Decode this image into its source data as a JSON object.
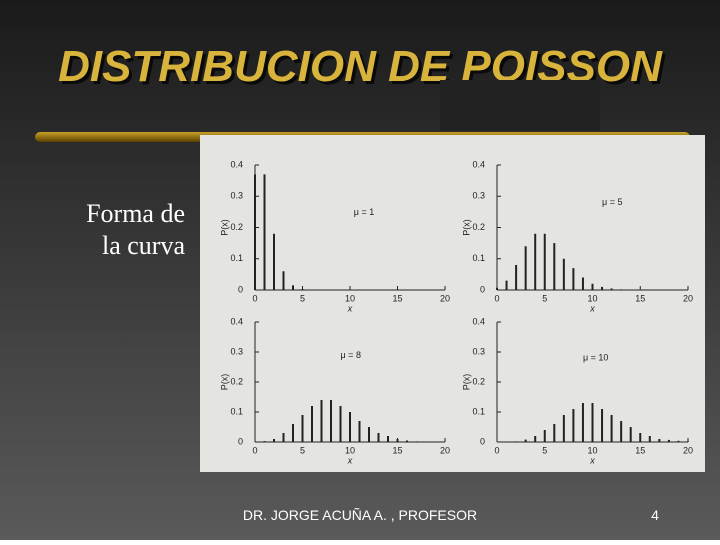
{
  "title": "DISTRIBUCION DE POISSON",
  "side_text": [
    "Forma de",
    "la curva"
  ],
  "footer": "DR. JORGE ACUÑA A. , PROFESOR",
  "page_number": "4",
  "chart_data": [
    {
      "type": "bar",
      "annotation": "μ = 1",
      "y_label": "P(x)",
      "x_label": "x",
      "x": [
        0,
        1,
        2,
        3,
        4,
        5
      ],
      "values": [
        0.37,
        0.37,
        0.18,
        0.06,
        0.015,
        0.003
      ],
      "xlim": [
        0,
        20
      ],
      "ylim": [
        0,
        0.4
      ],
      "xticks": [
        0,
        5,
        10,
        15,
        20
      ],
      "yticks": [
        0,
        0.1,
        0.2,
        0.3,
        0.4
      ],
      "color": "#222222"
    },
    {
      "type": "bar",
      "annotation": "μ = 5",
      "y_label": "P(x)",
      "x_label": "x",
      "x": [
        0,
        1,
        2,
        3,
        4,
        5,
        6,
        7,
        8,
        9,
        10,
        11,
        12,
        13
      ],
      "values": [
        0.007,
        0.03,
        0.08,
        0.14,
        0.18,
        0.18,
        0.15,
        0.1,
        0.07,
        0.04,
        0.02,
        0.01,
        0.005,
        0.002
      ],
      "xlim": [
        0,
        20
      ],
      "ylim": [
        0,
        0.4
      ],
      "xticks": [
        0,
        5,
        10,
        15,
        20
      ],
      "yticks": [
        0,
        0.1,
        0.2,
        0.3,
        0.4
      ],
      "color": "#222222"
    },
    {
      "type": "bar",
      "annotation": "μ = 8",
      "y_label": "P(x)",
      "x_label": "x",
      "x": [
        1,
        2,
        3,
        4,
        5,
        6,
        7,
        8,
        9,
        10,
        11,
        12,
        13,
        14,
        15,
        16,
        17
      ],
      "values": [
        0.003,
        0.01,
        0.03,
        0.06,
        0.09,
        0.12,
        0.14,
        0.14,
        0.12,
        0.1,
        0.07,
        0.05,
        0.03,
        0.02,
        0.01,
        0.005,
        0.002
      ],
      "xlim": [
        0,
        20
      ],
      "ylim": [
        0,
        0.4
      ],
      "xticks": [
        0,
        5,
        10,
        15,
        20
      ],
      "yticks": [
        0,
        0.1,
        0.2,
        0.3,
        0.4
      ],
      "color": "#222222"
    },
    {
      "type": "bar",
      "annotation": "μ = 10",
      "y_label": "P(x)",
      "x_label": "x",
      "x": [
        2,
        3,
        4,
        5,
        6,
        7,
        8,
        9,
        10,
        11,
        12,
        13,
        14,
        15,
        16,
        17,
        18,
        19,
        20
      ],
      "values": [
        0.002,
        0.008,
        0.02,
        0.04,
        0.06,
        0.09,
        0.11,
        0.13,
        0.13,
        0.11,
        0.09,
        0.07,
        0.05,
        0.03,
        0.02,
        0.01,
        0.007,
        0.004,
        0.002
      ],
      "xlim": [
        0,
        20
      ],
      "ylim": [
        0,
        0.4
      ],
      "xticks": [
        0,
        5,
        10,
        15,
        20
      ],
      "yticks": [
        0,
        0.1,
        0.2,
        0.3,
        0.4
      ],
      "color": "#222222"
    }
  ]
}
